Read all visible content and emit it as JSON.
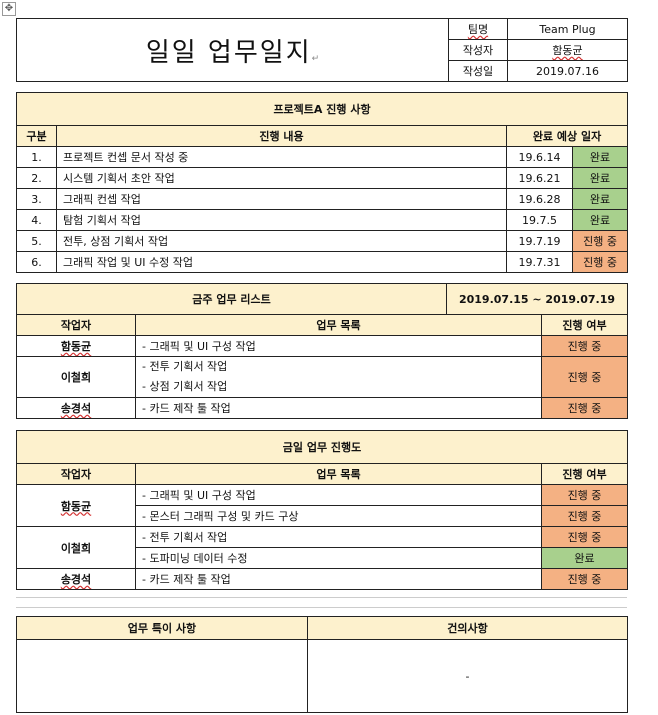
{
  "header": {
    "title": "일일 업무일지",
    "team_label": "팀명",
    "team_value": "Team Plug",
    "author_label": "작성자",
    "author_value": "함동균",
    "date_label": "작성일",
    "date_value": "2019.07.16"
  },
  "project": {
    "title": "프로젝트A 진행 사항",
    "col_no": "구분",
    "col_content": "진행 내용",
    "col_due": "완료 예상 일자",
    "rows": [
      {
        "no": "1.",
        "content": "프로젝트 컨셉 문서 작성 중",
        "date": "19.6.14",
        "status": "완료",
        "color": "#a8d08d"
      },
      {
        "no": "2.",
        "content": "시스템 기획서 초안 작업",
        "date": "19.6.21",
        "status": "완료",
        "color": "#a8d08d"
      },
      {
        "no": "3.",
        "content": "그래픽 컨셉 작업",
        "date": "19.6.28",
        "status": "완료",
        "color": "#a8d08d"
      },
      {
        "no": "4.",
        "content": "탐험 기획서 작업",
        "date": "19.7.5",
        "status": "완료",
        "color": "#a8d08d"
      },
      {
        "no": "5.",
        "content": "전투, 상점 기획서 작업",
        "date": "19.7.19",
        "status": "진행 중",
        "color": "#f4b183"
      },
      {
        "no": "6.",
        "content": "그래픽 작업 및 UI 수정 작업",
        "date": "19.7.31",
        "status": "진행 중",
        "color": "#f4b183"
      }
    ]
  },
  "weekly": {
    "title": "금주 업무 리스트",
    "period": "2019.07.15 ~ 2019.07.19",
    "col_worker": "작업자",
    "col_tasks": "업무 목록",
    "col_status": "진행 여부",
    "rows": [
      {
        "worker": "함동균",
        "tasks": [
          "- 그래픽 및 UI 구성 작업"
        ],
        "status": "진행 중"
      },
      {
        "worker": "이철희",
        "tasks": [
          "- 전투 기획서 작업",
          "- 상점 기획서 작업"
        ],
        "status": "진행 중"
      },
      {
        "worker": "송경석",
        "tasks": [
          "- 카드 제작 툴 작업"
        ],
        "status": "진행 중"
      }
    ]
  },
  "daily": {
    "title": "금일 업무 진행도",
    "col_worker": "작업자",
    "col_tasks": "업무 목록",
    "col_status": "진행 여부",
    "workers": [
      "함동균",
      "이철희",
      "송경석"
    ],
    "rows": [
      {
        "task": "- 그래픽 및 UI 구성 작업",
        "status": "진행 중",
        "color": "#f4b183"
      },
      {
        "task": "- 몬스터 그래픽 구성 및 카드 구상",
        "status": "진행 중",
        "color": "#f4b183"
      },
      {
        "task": "- 전투 기획서 작업",
        "status": "진행 중",
        "color": "#f4b183"
      },
      {
        "task": "- 도파미닝 데이터 수정",
        "status": "완료",
        "color": "#a8d08d"
      },
      {
        "task": "- 카드 제작 툴 작업",
        "status": "진행 중",
        "color": "#f4b183"
      }
    ]
  },
  "notes": {
    "special_label": "업무 특이 사항",
    "suggest_label": "건의사항",
    "suggest_value": "-"
  },
  "marks": {
    "paragraph": "↵",
    "cell_end": "¤",
    "move_handle": "✥"
  }
}
